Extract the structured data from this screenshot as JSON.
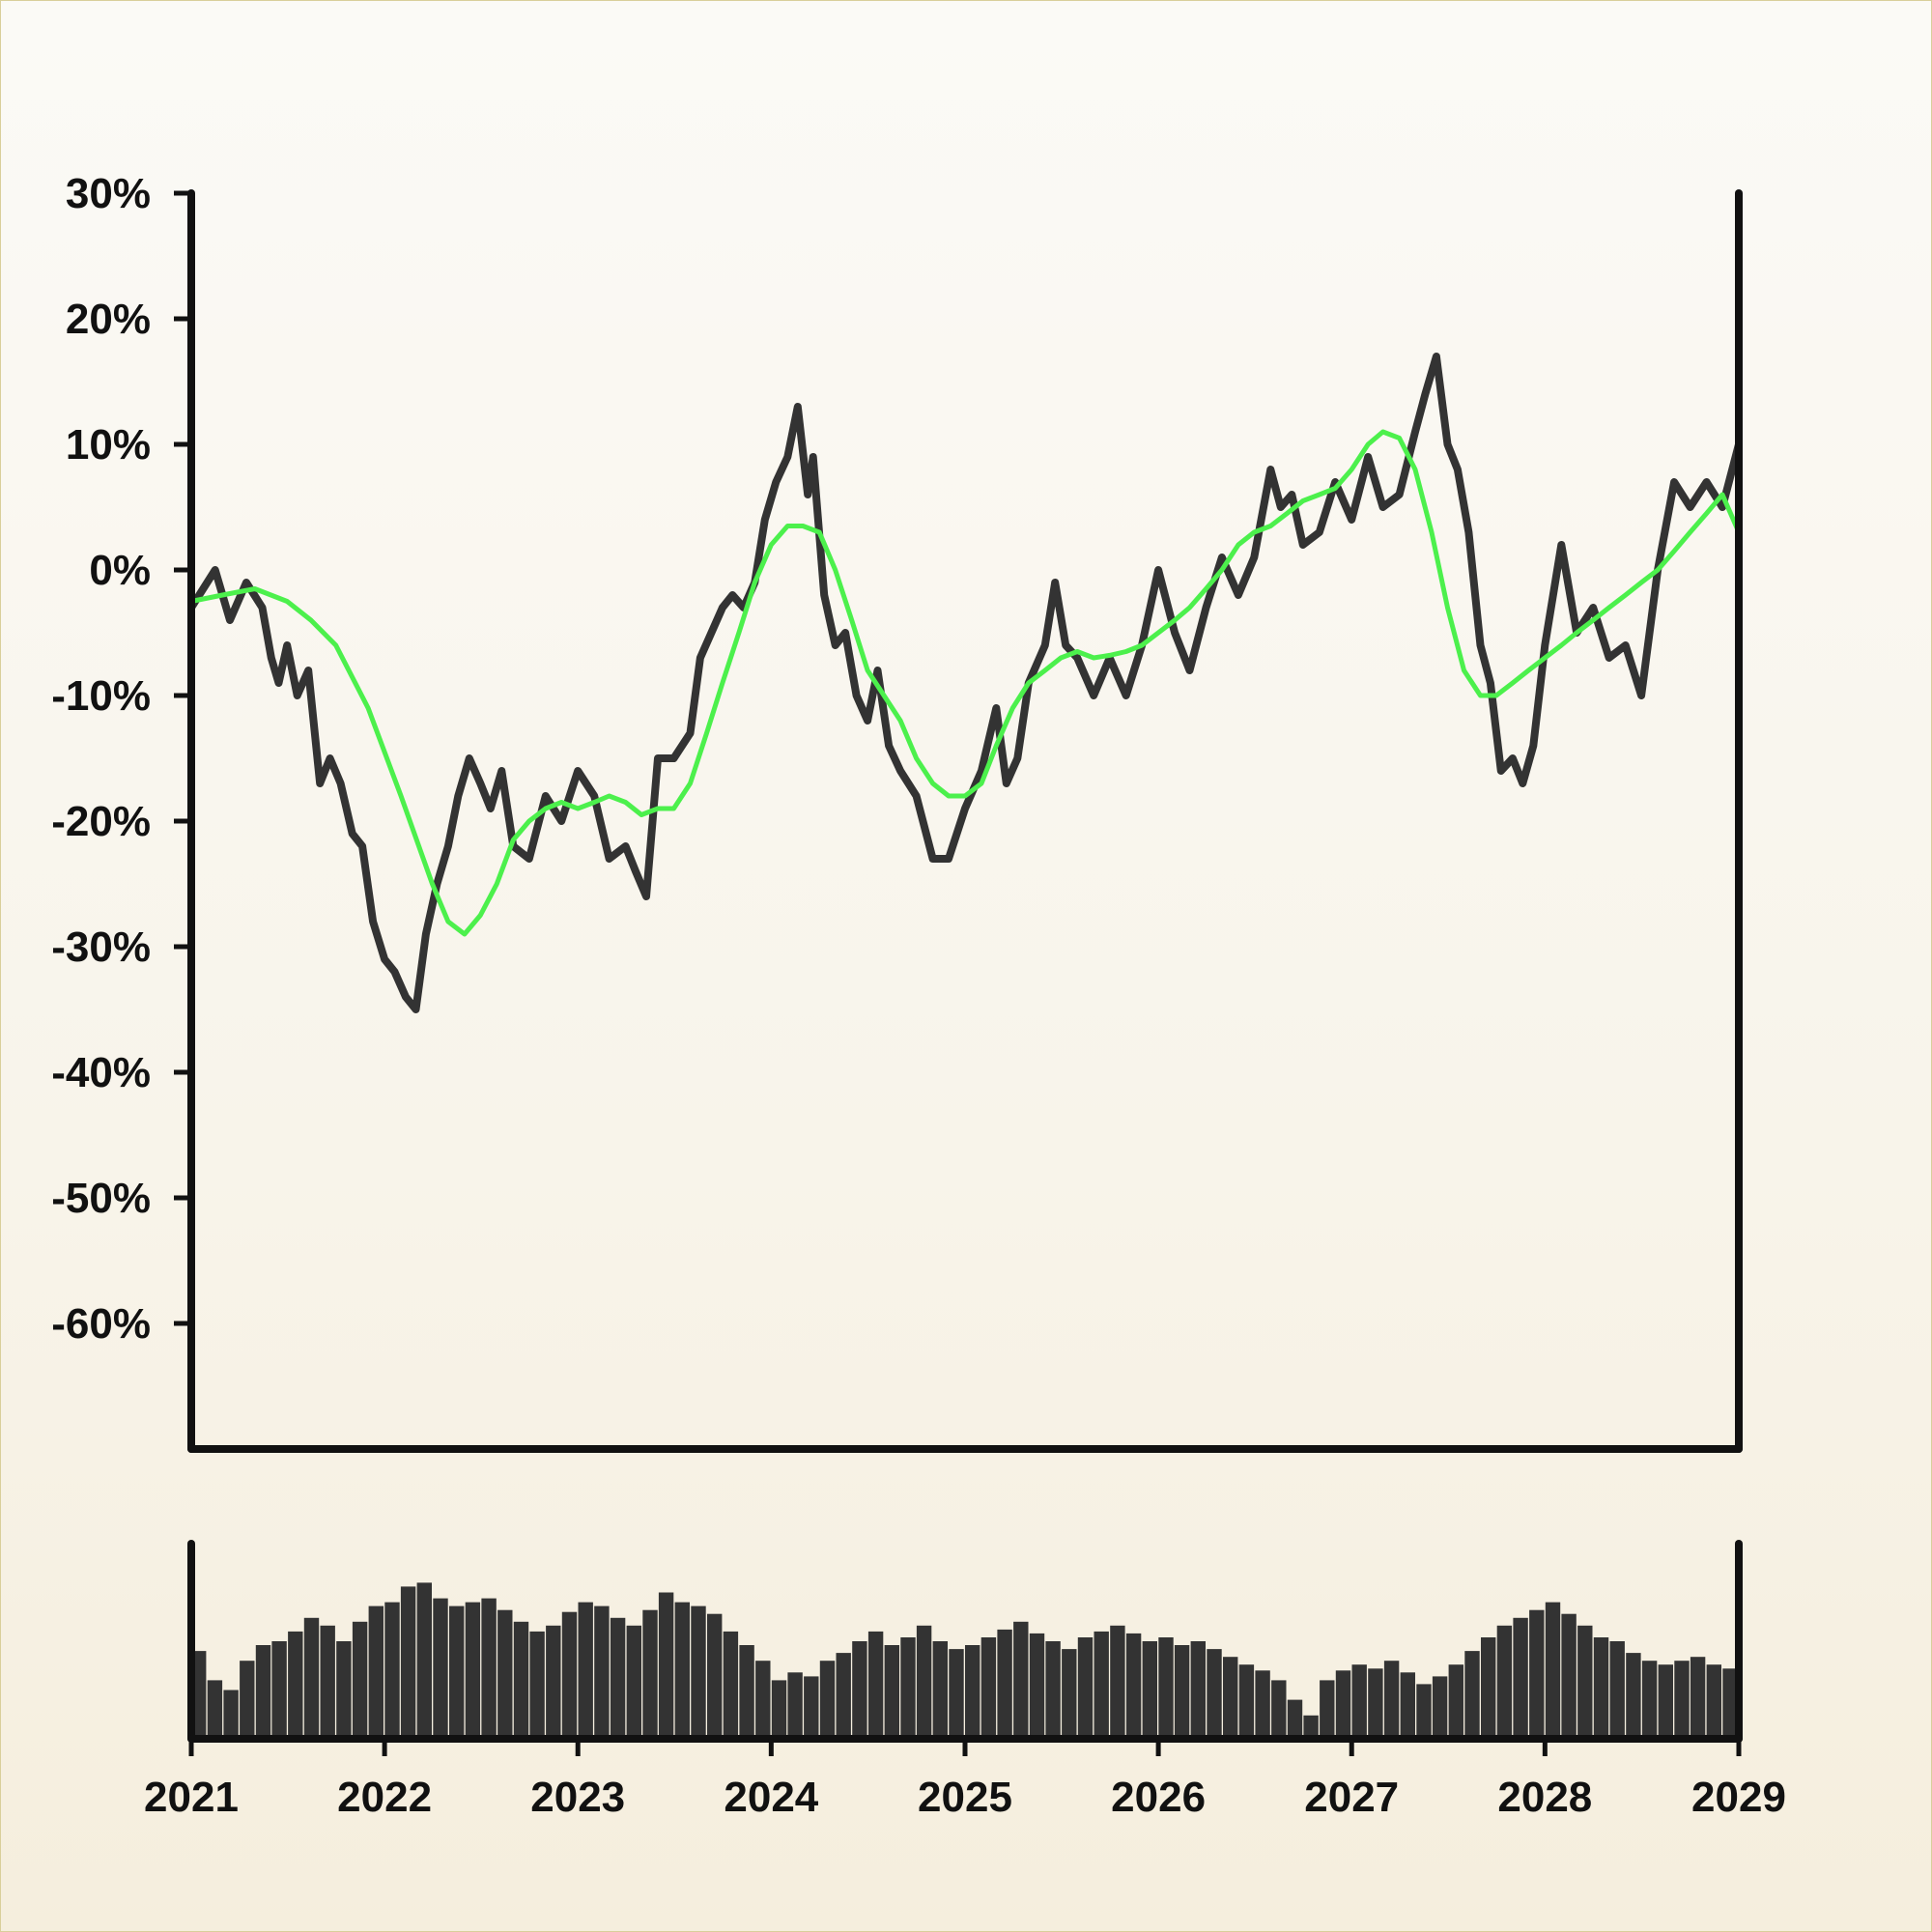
{
  "chart_data": [
    {
      "type": "line",
      "title": "",
      "xlabel": "",
      "ylabel": "",
      "x_range": [
        "2021-01-01",
        "2029-01-01"
      ],
      "ylim": [
        -0.7,
        0.3
      ],
      "y_ticks": [
        0.3,
        0.2,
        0.1,
        0.0,
        -0.1,
        -0.2,
        -0.3,
        -0.4,
        -0.5,
        -0.6
      ],
      "y_tick_labels": [
        "30%",
        "20%",
        "10%",
        "0%",
        "-10%",
        "-20%",
        "-30%",
        "-40%",
        "-50%",
        "-60%"
      ],
      "grid": false,
      "colors": {
        "price": "#333333",
        "moving_average": "#4cf04c"
      },
      "series": [
        {
          "key": "price",
          "x": [
            "2021-01-01",
            "2021-02-15",
            "2021-03-15",
            "2021-04-15",
            "2021-05-15",
            "2021-06-01",
            "2021-06-15",
            "2021-07-01",
            "2021-07-20",
            "2021-08-10",
            "2021-09-01",
            "2021-09-20",
            "2021-10-10",
            "2021-11-01",
            "2021-11-20",
            "2021-12-10",
            "2022-01-01",
            "2022-01-20",
            "2022-02-10",
            "2022-03-01",
            "2022-03-20",
            "2022-04-10",
            "2022-05-01",
            "2022-05-20",
            "2022-06-10",
            "2022-07-01",
            "2022-07-20",
            "2022-08-10",
            "2022-09-01",
            "2022-10-01",
            "2022-11-01",
            "2022-12-01",
            "2023-01-01",
            "2023-02-01",
            "2023-03-01",
            "2023-04-01",
            "2023-04-20",
            "2023-05-10",
            "2023-06-01",
            "2023-07-01",
            "2023-08-01",
            "2023-08-20",
            "2023-09-10",
            "2023-10-01",
            "2023-10-20",
            "2023-11-10",
            "2023-12-01",
            "2023-12-20",
            "2024-01-10",
            "2024-02-01",
            "2024-02-20",
            "2024-03-10",
            "2024-03-20",
            "2024-04-10",
            "2024-05-01",
            "2024-05-20",
            "2024-06-10",
            "2024-07-01",
            "2024-07-20",
            "2024-08-10",
            "2024-09-01",
            "2024-10-01",
            "2024-11-01",
            "2024-12-01",
            "2025-01-01",
            "2025-02-01",
            "2025-03-01",
            "2025-03-20",
            "2025-04-10",
            "2025-05-01",
            "2025-06-01",
            "2025-06-20",
            "2025-07-10",
            "2025-08-01",
            "2025-09-01",
            "2025-10-01",
            "2025-11-01",
            "2025-12-01",
            "2026-01-01",
            "2026-02-01",
            "2026-03-01",
            "2026-04-01",
            "2026-05-01",
            "2026-06-01",
            "2026-07-01",
            "2026-08-01",
            "2026-08-20",
            "2026-09-10",
            "2026-10-01",
            "2026-11-01",
            "2026-12-01",
            "2027-01-01",
            "2027-02-01",
            "2027-03-01",
            "2027-04-01",
            "2027-05-01",
            "2027-05-20",
            "2027-06-10",
            "2027-07-01",
            "2027-07-20",
            "2027-08-10",
            "2027-09-01",
            "2027-09-20",
            "2027-10-10",
            "2027-11-01",
            "2027-11-20",
            "2027-12-10",
            "2028-01-01",
            "2028-02-01",
            "2028-03-01",
            "2028-04-01",
            "2028-05-01",
            "2028-06-01",
            "2028-07-01",
            "2028-08-01",
            "2028-09-01",
            "2028-10-01",
            "2028-11-01",
            "2028-12-01",
            "2029-01-01"
          ],
          "y": [
            -0.03,
            0.0,
            -0.04,
            -0.01,
            -0.03,
            -0.07,
            -0.09,
            -0.06,
            -0.1,
            -0.08,
            -0.17,
            -0.15,
            -0.17,
            -0.21,
            -0.22,
            -0.28,
            -0.31,
            -0.32,
            -0.34,
            -0.35,
            -0.29,
            -0.25,
            -0.22,
            -0.18,
            -0.15,
            -0.17,
            -0.19,
            -0.16,
            -0.22,
            -0.23,
            -0.18,
            -0.2,
            -0.16,
            -0.18,
            -0.23,
            -0.22,
            -0.24,
            -0.26,
            -0.15,
            -0.15,
            -0.13,
            -0.07,
            -0.05,
            -0.03,
            -0.02,
            -0.03,
            -0.01,
            0.04,
            0.07,
            0.09,
            0.13,
            0.06,
            0.09,
            -0.02,
            -0.06,
            -0.05,
            -0.1,
            -0.12,
            -0.08,
            -0.14,
            -0.16,
            -0.18,
            -0.23,
            -0.23,
            -0.19,
            -0.16,
            -0.11,
            -0.17,
            -0.15,
            -0.09,
            -0.06,
            -0.01,
            -0.06,
            -0.07,
            -0.1,
            -0.07,
            -0.1,
            -0.06,
            0.0,
            -0.05,
            -0.08,
            -0.03,
            0.01,
            -0.02,
            0.01,
            0.08,
            0.05,
            0.06,
            0.02,
            0.03,
            0.07,
            0.04,
            0.09,
            0.05,
            0.06,
            0.11,
            0.14,
            0.17,
            0.1,
            0.08,
            0.03,
            -0.06,
            -0.09,
            -0.16,
            -0.15,
            -0.17,
            -0.14,
            -0.06,
            0.02,
            -0.05,
            -0.03,
            -0.07,
            -0.06,
            -0.1,
            0.0,
            0.07,
            0.05,
            0.07,
            0.05,
            0.1
          ]
        },
        {
          "key": "moving_average",
          "x": [
            "2021-01-01",
            "2021-03-01",
            "2021-05-01",
            "2021-07-01",
            "2021-08-15",
            "2021-10-01",
            "2021-12-01",
            "2022-02-01",
            "2022-04-01",
            "2022-05-01",
            "2022-06-01",
            "2022-07-01",
            "2022-08-01",
            "2022-09-01",
            "2022-10-01",
            "2022-11-01",
            "2022-12-01",
            "2023-01-01",
            "2023-02-01",
            "2023-03-01",
            "2023-04-01",
            "2023-05-01",
            "2023-06-01",
            "2023-07-01",
            "2023-08-01",
            "2023-09-01",
            "2023-10-01",
            "2023-11-01",
            "2023-12-01",
            "2024-01-01",
            "2024-02-01",
            "2024-03-01",
            "2024-04-01",
            "2024-05-01",
            "2024-06-01",
            "2024-07-01",
            "2024-08-01",
            "2024-09-01",
            "2024-10-01",
            "2024-11-01",
            "2024-12-01",
            "2025-01-01",
            "2025-02-01",
            "2025-03-01",
            "2025-04-01",
            "2025-05-01",
            "2025-06-01",
            "2025-07-01",
            "2025-08-01",
            "2025-09-01",
            "2025-10-01",
            "2025-11-01",
            "2025-12-01",
            "2026-01-01",
            "2026-02-01",
            "2026-03-01",
            "2026-04-01",
            "2026-05-01",
            "2026-06-01",
            "2026-07-01",
            "2026-08-01",
            "2026-09-01",
            "2026-10-01",
            "2026-11-01",
            "2026-12-01",
            "2027-01-01",
            "2027-02-01",
            "2027-03-01",
            "2027-04-01",
            "2027-05-01",
            "2027-06-01",
            "2027-07-01",
            "2027-08-01",
            "2027-09-01",
            "2027-10-01",
            "2027-11-01",
            "2027-12-01",
            "2028-01-01",
            "2028-02-01",
            "2028-03-01",
            "2028-04-01",
            "2028-05-01",
            "2028-06-01",
            "2028-07-01",
            "2028-08-01",
            "2028-09-01",
            "2028-10-01",
            "2028-11-01",
            "2028-12-01",
            "2029-01-01"
          ],
          "y": [
            -0.025,
            -0.02,
            -0.015,
            -0.025,
            -0.04,
            -0.06,
            -0.11,
            -0.18,
            -0.25,
            -0.28,
            -0.29,
            -0.275,
            -0.25,
            -0.215,
            -0.2,
            -0.19,
            -0.185,
            -0.19,
            -0.185,
            -0.18,
            -0.185,
            -0.195,
            -0.19,
            -0.19,
            -0.17,
            -0.13,
            -0.09,
            -0.05,
            -0.01,
            0.02,
            0.035,
            0.035,
            0.03,
            0.0,
            -0.04,
            -0.08,
            -0.1,
            -0.12,
            -0.15,
            -0.17,
            -0.18,
            -0.18,
            -0.17,
            -0.14,
            -0.11,
            -0.09,
            -0.08,
            -0.07,
            -0.065,
            -0.07,
            -0.068,
            -0.065,
            -0.06,
            -0.05,
            -0.04,
            -0.03,
            -0.015,
            0.0,
            0.02,
            0.03,
            0.035,
            0.045,
            0.055,
            0.06,
            0.065,
            0.08,
            0.1,
            0.11,
            0.105,
            0.08,
            0.03,
            -0.03,
            -0.08,
            -0.1,
            -0.1,
            -0.09,
            -0.08,
            -0.07,
            -0.06,
            -0.05,
            -0.04,
            -0.03,
            -0.02,
            -0.01,
            0.0,
            0.015,
            0.03,
            0.045,
            0.06,
            0.03
          ]
        }
      ]
    },
    {
      "type": "bar",
      "title": "",
      "xlabel": "",
      "ylabel": "",
      "x_range": [
        "2021-01-01",
        "2029-01-01"
      ],
      "x_tick_labels": [
        "2021",
        "2022",
        "2023",
        "2024",
        "2025",
        "2026",
        "2027",
        "2028",
        "2029"
      ],
      "ylim": [
        0,
        1
      ],
      "colors": {
        "bars": "#333333"
      },
      "series": [
        {
          "key": "volume",
          "x": [
            "2021-01",
            "2021-02",
            "2021-03",
            "2021-04",
            "2021-05",
            "2021-06",
            "2021-07",
            "2021-08",
            "2021-09",
            "2021-10",
            "2021-11",
            "2021-12",
            "2022-01",
            "2022-02",
            "2022-03",
            "2022-04",
            "2022-05",
            "2022-06",
            "2022-07",
            "2022-08",
            "2022-09",
            "2022-10",
            "2022-11",
            "2022-12",
            "2023-01",
            "2023-02",
            "2023-03",
            "2023-04",
            "2023-05",
            "2023-06",
            "2023-07",
            "2023-08",
            "2023-09",
            "2023-10",
            "2023-11",
            "2023-12",
            "2024-01",
            "2024-02",
            "2024-03",
            "2024-04",
            "2024-05",
            "2024-06",
            "2024-07",
            "2024-08",
            "2024-09",
            "2024-10",
            "2024-11",
            "2024-12",
            "2025-01",
            "2025-02",
            "2025-03",
            "2025-04",
            "2025-05",
            "2025-06",
            "2025-07",
            "2025-08",
            "2025-09",
            "2025-10",
            "2025-11",
            "2025-12",
            "2026-01",
            "2026-02",
            "2026-03",
            "2026-04",
            "2026-05",
            "2026-06",
            "2026-07",
            "2026-08",
            "2026-09",
            "2026-10",
            "2026-11",
            "2026-12",
            "2027-01",
            "2027-02",
            "2027-03",
            "2027-04",
            "2027-05",
            "2027-06",
            "2027-07",
            "2027-08",
            "2027-09",
            "2027-10",
            "2027-11",
            "2027-12",
            "2028-01",
            "2028-02",
            "2028-03",
            "2028-04",
            "2028-05",
            "2028-06",
            "2028-07",
            "2028-08",
            "2028-09",
            "2028-10",
            "2028-11",
            "2028-12"
          ],
          "values": [
            0.45,
            0.3,
            0.25,
            0.4,
            0.48,
            0.5,
            0.55,
            0.62,
            0.58,
            0.5,
            0.6,
            0.68,
            0.7,
            0.78,
            0.8,
            0.72,
            0.68,
            0.7,
            0.72,
            0.66,
            0.6,
            0.55,
            0.58,
            0.65,
            0.7,
            0.68,
            0.62,
            0.58,
            0.66,
            0.75,
            0.7,
            0.68,
            0.64,
            0.55,
            0.48,
            0.4,
            0.3,
            0.34,
            0.32,
            0.4,
            0.44,
            0.5,
            0.55,
            0.48,
            0.52,
            0.58,
            0.5,
            0.46,
            0.48,
            0.52,
            0.56,
            0.6,
            0.54,
            0.5,
            0.46,
            0.52,
            0.55,
            0.58,
            0.54,
            0.5,
            0.52,
            0.48,
            0.5,
            0.46,
            0.42,
            0.38,
            0.35,
            0.3,
            0.2,
            0.12,
            0.3,
            0.35,
            0.38,
            0.36,
            0.4,
            0.34,
            0.28,
            0.32,
            0.38,
            0.45,
            0.52,
            0.58,
            0.62,
            0.66,
            0.7,
            0.64,
            0.58,
            0.52,
            0.5,
            0.44,
            0.4,
            0.38,
            0.4,
            0.42,
            0.38,
            0.36
          ]
        }
      ]
    }
  ]
}
